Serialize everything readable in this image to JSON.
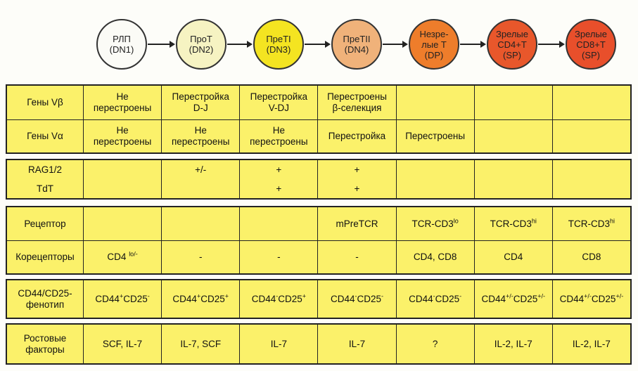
{
  "stages": [
    {
      "label": "РЛП\n(DN1)",
      "color": "#fbfbf6"
    },
    {
      "label": "ПроТ\n(DN2)",
      "color": "#f6f3c2"
    },
    {
      "label": "ПреТI\n(DN3)",
      "color": "#f4e421"
    },
    {
      "label": "ПреТII\n(DN4)",
      "color": "#f0b27a"
    },
    {
      "label": "Незре-\nлые Т\n(DP)",
      "color": "#ee7d2b"
    },
    {
      "label": "Зрелые\nCD4+T\n(SP)",
      "color": "#e8572b"
    },
    {
      "label": "Зрелые\nCD8+T\n(SP)",
      "color": "#e84f2b"
    }
  ],
  "groups": [
    {
      "rows": [
        {
          "label": "Гены Vβ",
          "cells": [
            "Не\nперестроены",
            "Перестройка\nD-J",
            "Перестройка\nV-DJ",
            "Перестроены\nβ-селекция",
            null,
            null,
            null
          ]
        },
        {
          "label": "Гены Vα",
          "cells": [
            "Не\nперестроены",
            "Не\nперестроены",
            "Не\nперестроены",
            "Перестройка",
            "Перестроены",
            null,
            null
          ]
        }
      ]
    },
    {
      "ruled": false,
      "rows": [
        {
          "label": "RAG1/2",
          "cells": [
            null,
            "+/-",
            "+",
            "+",
            null,
            null,
            null
          ]
        },
        {
          "label": "TdT",
          "cells": [
            null,
            null,
            "+",
            "+",
            null,
            null,
            null
          ]
        }
      ]
    },
    {
      "rows": [
        {
          "label": "Рецептор",
          "cells": [
            null,
            null,
            null,
            "mPreTCR",
            [
              "TCR-CD3",
              "lo"
            ],
            [
              "TCR-CD3",
              "hi"
            ],
            [
              "TCR-CD3",
              "hi"
            ]
          ]
        },
        {
          "label": "Корецепторы",
          "cells": [
            [
              "CD4 ",
              "lo/-"
            ],
            "-",
            "-",
            "-",
            "CD4, CD8",
            "CD4",
            "CD8"
          ]
        }
      ]
    },
    {
      "rows": [
        {
          "label": "CD44/CD25-\nфенотип",
          "cells": [
            [
              "CD44",
              "+",
              "CD25",
              "-"
            ],
            [
              "CD44",
              "+",
              "CD25",
              "+"
            ],
            [
              "CD44",
              "-",
              "CD25",
              "+"
            ],
            [
              "CD44",
              "-",
              "CD25",
              "-"
            ],
            [
              "CD44",
              "-",
              "CD25",
              "-"
            ],
            [
              "CD44",
              "+/-",
              "CD25",
              "+/-"
            ],
            [
              "CD44",
              "+/-",
              "CD25",
              "+/-"
            ]
          ]
        }
      ]
    },
    {
      "rows": [
        {
          "label": "Ростовые\nфакторы",
          "cells": [
            "SCF, IL-7",
            "IL-7, SCF",
            "IL-7",
            "IL-7",
            "?",
            "IL-2, IL-7",
            "IL-2, IL-7"
          ]
        }
      ]
    }
  ]
}
